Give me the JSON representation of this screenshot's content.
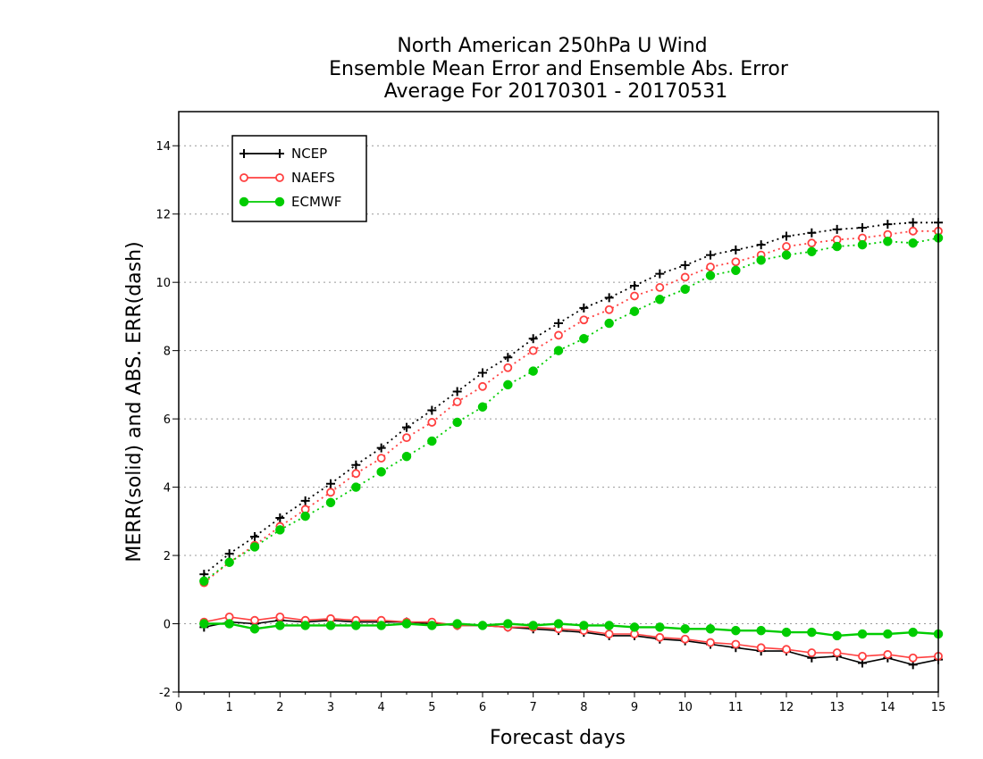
{
  "chart_data": {
    "type": "line",
    "title_lines": [
      "North American 250hPa U Wind",
      "Ensemble Mean Error and Ensemble Abs. Error",
      "Average For 20170301 - 20170531"
    ],
    "xlabel": "Forecast days",
    "ylabel": "MERR(solid) and ABS. ERR(dash)",
    "xlim": [
      0,
      15
    ],
    "ylim": [
      -2,
      15
    ],
    "x_ticks": [
      "0",
      "1",
      "2",
      "3",
      "4",
      "5",
      "6",
      "7",
      "8",
      "9",
      "10",
      "11",
      "12",
      "13",
      "14",
      "15"
    ],
    "y_ticks": [
      "-2",
      "0",
      "2",
      "4",
      "6",
      "8",
      "10",
      "12",
      "14"
    ],
    "grid": "horizontal dotted at y tick marks",
    "legend_position": "top-left",
    "x": [
      0.5,
      1,
      1.5,
      2,
      2.5,
      3,
      3.5,
      4,
      4.5,
      5,
      5.5,
      6,
      6.5,
      7,
      7.5,
      8,
      8.5,
      9,
      9.5,
      10,
      10.5,
      11,
      11.5,
      12,
      12.5,
      13,
      13.5,
      14,
      14.5,
      15
    ],
    "series": [
      {
        "name": "NCEP",
        "color": "#000000",
        "marker": "plus",
        "abs_error": [
          1.45,
          2.05,
          2.55,
          3.1,
          3.6,
          4.1,
          4.65,
          5.15,
          5.75,
          6.25,
          6.8,
          7.35,
          7.8,
          8.35,
          8.8,
          9.25,
          9.55,
          9.9,
          10.25,
          10.5,
          10.8,
          10.95,
          11.1,
          11.35,
          11.45,
          11.55,
          11.6,
          11.7,
          11.75,
          11.75
        ],
        "mean_error": [
          -0.1,
          0.05,
          0.0,
          0.1,
          0.05,
          0.1,
          0.05,
          0.05,
          0.05,
          0.0,
          -0.05,
          -0.05,
          -0.1,
          -0.15,
          -0.2,
          -0.25,
          -0.35,
          -0.35,
          -0.45,
          -0.5,
          -0.6,
          -0.7,
          -0.8,
          -0.8,
          -1.0,
          -0.95,
          -1.15,
          -1.0,
          -1.2,
          -1.05
        ]
      },
      {
        "name": "NAEFS",
        "color": "#ff4040",
        "marker": "open-circle",
        "abs_error": [
          1.2,
          1.8,
          2.3,
          2.85,
          3.35,
          3.85,
          4.4,
          4.85,
          5.45,
          5.9,
          6.5,
          6.95,
          7.5,
          8.0,
          8.45,
          8.9,
          9.2,
          9.6,
          9.85,
          10.15,
          10.45,
          10.6,
          10.8,
          11.05,
          11.15,
          11.25,
          11.3,
          11.4,
          11.5,
          11.5
        ],
        "mean_error": [
          0.05,
          0.2,
          0.1,
          0.2,
          0.1,
          0.15,
          0.1,
          0.1,
          0.05,
          0.05,
          -0.05,
          -0.05,
          -0.1,
          -0.1,
          -0.15,
          -0.2,
          -0.3,
          -0.3,
          -0.4,
          -0.45,
          -0.55,
          -0.6,
          -0.7,
          -0.75,
          -0.85,
          -0.85,
          -0.95,
          -0.9,
          -1.0,
          -0.95
        ]
      },
      {
        "name": "ECMWF",
        "color": "#00cc00",
        "marker": "filled-circle",
        "abs_error": [
          1.25,
          1.8,
          2.25,
          2.75,
          3.15,
          3.55,
          4.0,
          4.45,
          4.9,
          5.35,
          5.9,
          6.35,
          7.0,
          7.4,
          8.0,
          8.35,
          8.8,
          9.15,
          9.5,
          9.8,
          10.2,
          10.35,
          10.65,
          10.8,
          10.9,
          11.05,
          11.1,
          11.2,
          11.15,
          11.3
        ],
        "mean_error": [
          0.0,
          0.0,
          -0.15,
          -0.05,
          -0.05,
          -0.05,
          -0.05,
          -0.05,
          0.0,
          -0.05,
          0.0,
          -0.05,
          0.0,
          -0.05,
          0.0,
          -0.05,
          -0.05,
          -0.1,
          -0.1,
          -0.15,
          -0.15,
          -0.2,
          -0.2,
          -0.25,
          -0.25,
          -0.35,
          -0.3,
          -0.3,
          -0.25,
          -0.3
        ]
      }
    ]
  }
}
